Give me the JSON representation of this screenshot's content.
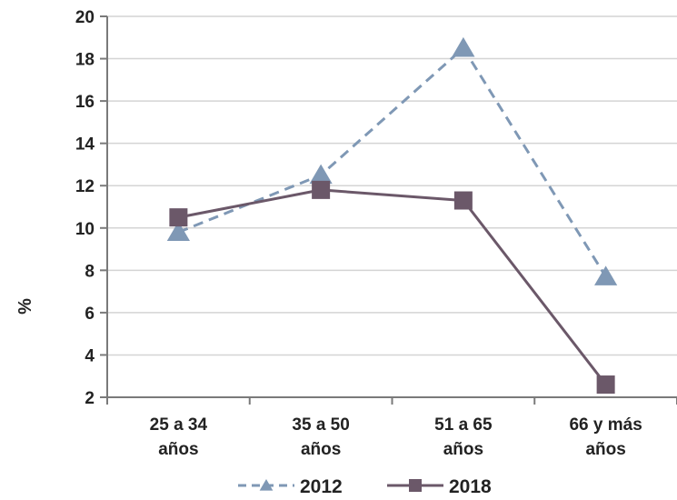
{
  "chart_data": {
    "type": "line",
    "categories": [
      "25 a 34 años",
      "35 a 50 años",
      "51 a 65 años",
      "66 y más años"
    ],
    "category_lines": [
      [
        "25 a 34",
        "años"
      ],
      [
        "35 a 50",
        "años"
      ],
      [
        "51 a 65",
        "años"
      ],
      [
        "66 y más",
        "años"
      ]
    ],
    "series": [
      {
        "name": "2012",
        "values": [
          9.8,
          12.5,
          18.5,
          7.7
        ],
        "color": "#7f98b5",
        "line_style": "dashed",
        "marker": "triangle"
      },
      {
        "name": "2018",
        "values": [
          10.5,
          11.8,
          11.3,
          2.6
        ],
        "color": "#6b5869",
        "line_style": "solid",
        "marker": "square"
      }
    ],
    "ylabel": "%",
    "xlabel": "",
    "ylim": [
      2,
      20
    ],
    "yticks": [
      "2",
      "4",
      "6",
      "8",
      "10",
      "12",
      "14",
      "16",
      "18",
      "20"
    ],
    "grid": true,
    "legend_position": "bottom"
  }
}
